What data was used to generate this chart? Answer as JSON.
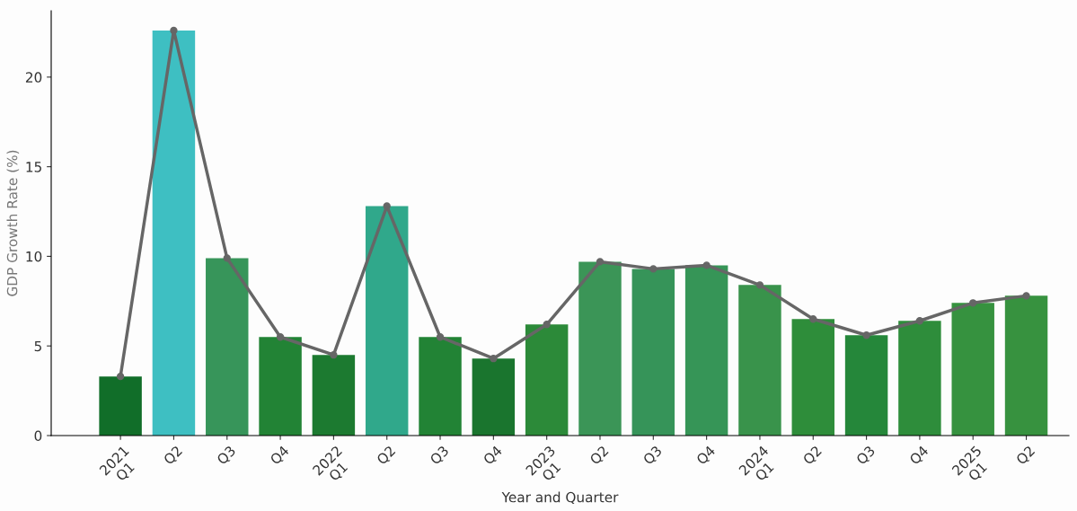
{
  "chart_data": {
    "type": "bar",
    "xlabel": "Year and Quarter",
    "ylabel": "GDP Growth Rate (%)",
    "categories": [
      "2021\nQ1",
      "Q2",
      "Q3",
      "Q4",
      "2022\nQ1",
      "Q2",
      "Q3",
      "Q4",
      "2023\nQ1",
      "Q2",
      "Q3",
      "Q4",
      "2024\nQ1",
      "Q2",
      "Q3",
      "Q4",
      "2025\nQ1",
      "Q2"
    ],
    "series": [
      {
        "colors": [
          "#116e29",
          "#3ebfc2",
          "#37955a",
          "#228335",
          "#1c7a30",
          "#30a88b",
          "#228335",
          "#1a752e",
          "#2c8a39",
          "#3b9557",
          "#369459",
          "#369557",
          "#39934b",
          "#2e8d3a",
          "#25873a",
          "#2e8d3b",
          "#36923f",
          "#37923f"
        ],
        "values": [
          3.3,
          22.6,
          9.9,
          5.5,
          4.5,
          12.8,
          5.5,
          4.3,
          6.2,
          9.7,
          9.3,
          9.5,
          8.4,
          6.5,
          5.6,
          6.4,
          7.4,
          7.8
        ]
      },
      {
        "type": "line",
        "color": "#666666",
        "marker": "circle",
        "values": [
          3.3,
          22.6,
          9.9,
          5.5,
          4.5,
          12.8,
          5.5,
          4.3,
          6.2,
          9.7,
          9.3,
          9.5,
          8.4,
          6.5,
          5.6,
          6.4,
          7.4,
          7.8
        ]
      }
    ],
    "ylim": [
      0,
      23.7
    ],
    "yticks": [
      0,
      5,
      10,
      15,
      20
    ],
    "grid": false,
    "legend": false
  }
}
